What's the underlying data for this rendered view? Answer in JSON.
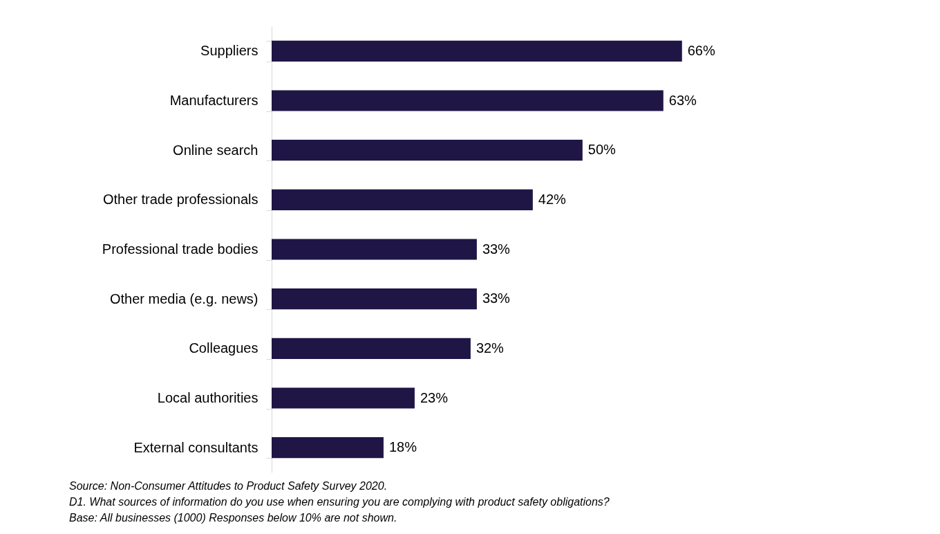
{
  "chart_data": {
    "type": "bar",
    "orientation": "horizontal",
    "categories": [
      "Suppliers",
      "Manufacturers",
      "Online search ",
      "Other trade professionals",
      "Professional trade bodies",
      "Other media (e.g. news)",
      "Colleagues",
      "Local authorities",
      "External consultants"
    ],
    "values": [
      66,
      63,
      50,
      42,
      33,
      33,
      32,
      23,
      18
    ],
    "value_labels": [
      "66%",
      "63%",
      "50%",
      "42%",
      "33%",
      "33%",
      "32%",
      "23%",
      "18%"
    ],
    "color": "#1f1646",
    "grid": false,
    "annotations": [
      "Source: Non-Consumer Attitudes to Product Safety Survey 2020.",
      "D1. What sources of information do you use when  ensuring you are complying with product safety obligations?",
      "Base: All businesses (1000) Responses below 10% are not shown."
    ]
  }
}
